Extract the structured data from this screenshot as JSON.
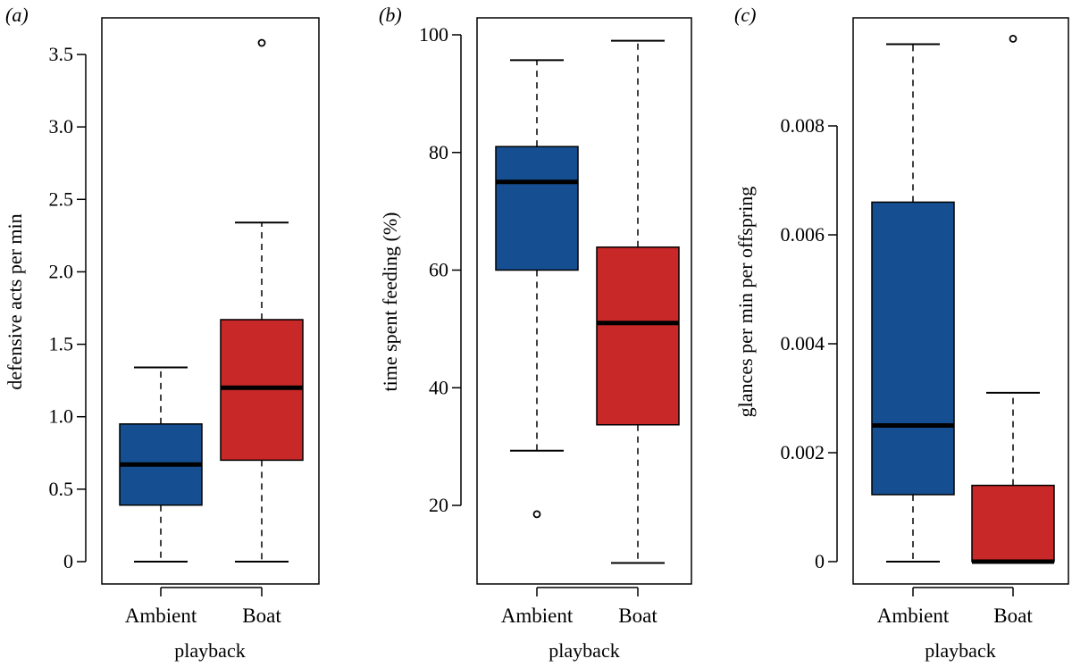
{
  "chart_data": [
    {
      "type": "boxplot",
      "panel_label": "(a)",
      "xlabel": "playback",
      "ylabel": "defensive acts per min",
      "categories": [
        "Ambient",
        "Boat"
      ],
      "colors": [
        "#154f91",
        "#c82828"
      ],
      "ylim": [
        0,
        3.6
      ],
      "yticks": [
        0,
        0.5,
        1.0,
        1.5,
        2.0,
        2.5,
        3.0,
        3.5
      ],
      "ytick_labels": [
        "0",
        "0.5",
        "1.0",
        "1.5",
        "2.0",
        "2.5",
        "3.0",
        "3.5"
      ],
      "boxes": [
        {
          "whisker_low": 0,
          "q1": 0.39,
          "median": 0.67,
          "q3": 0.95,
          "whisker_high": 1.34,
          "outliers": []
        },
        {
          "whisker_low": 0,
          "q1": 0.7,
          "median": 1.2,
          "q3": 1.67,
          "whisker_high": 2.34,
          "outliers": [
            3.58
          ]
        }
      ]
    },
    {
      "type": "boxplot",
      "panel_label": "(b)",
      "xlabel": "playback",
      "ylabel": "time spent feeding (%)",
      "categories": [
        "Ambient",
        "Boat"
      ],
      "colors": [
        "#154f91",
        "#c82828"
      ],
      "ylim": [
        10,
        100
      ],
      "yticks": [
        20,
        40,
        60,
        80,
        100
      ],
      "ytick_labels": [
        "20",
        "40",
        "60",
        "80",
        "100"
      ],
      "boxes": [
        {
          "whisker_low": 29.3,
          "q1": 60.0,
          "median": 75.0,
          "q3": 81.0,
          "whisker_high": 95.7,
          "outliers": [
            18.5
          ]
        },
        {
          "whisker_low": 10.2,
          "q1": 33.7,
          "median": 51.0,
          "q3": 63.9,
          "whisker_high": 99.0,
          "outliers": []
        }
      ]
    },
    {
      "type": "boxplot",
      "panel_label": "(c)",
      "xlabel": "playback",
      "ylabel": "glances per min per offspring",
      "categories": [
        "Ambient",
        "Boat"
      ],
      "colors": [
        "#154f91",
        "#c82828"
      ],
      "ylim": [
        0,
        0.0096
      ],
      "yticks": [
        0,
        0.002,
        0.004,
        0.006,
        0.008
      ],
      "ytick_labels": [
        "0",
        "0.002",
        "0.004",
        "0.006",
        "0.008"
      ],
      "boxes": [
        {
          "whisker_low": 0,
          "q1": 0.00123,
          "median": 0.0025,
          "q3": 0.0066,
          "whisker_high": 0.0095,
          "outliers": []
        },
        {
          "whisker_low": 0,
          "q1": 0.0,
          "median": 0.0,
          "q3": 0.0014,
          "whisker_high": 0.0031,
          "outliers": [
            0.0096
          ]
        }
      ]
    }
  ]
}
